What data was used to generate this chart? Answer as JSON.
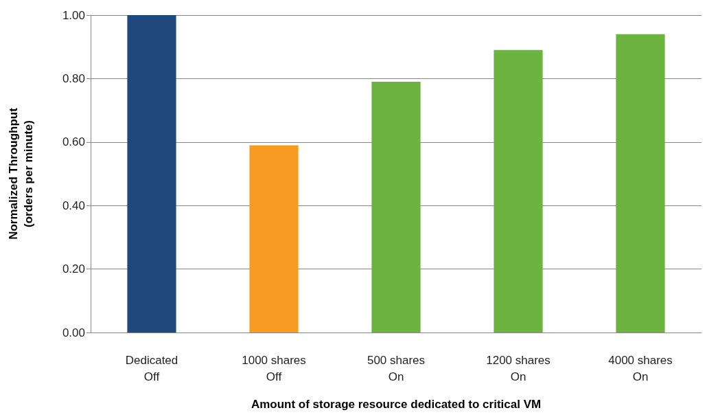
{
  "chart_data": {
    "type": "bar",
    "xlabel": "Amount of storage resource dedicated to critical VM",
    "ylabel": "Normalized Throughput\n(orders per minute)",
    "categories": [
      "Dedicated\nOff",
      "1000 shares\nOff",
      "500 shares\nOn",
      "1200 shares\nOn",
      "4000 shares\nOn"
    ],
    "values": [
      1.0,
      0.59,
      0.79,
      0.89,
      0.94
    ],
    "colors": [
      "#1f497d",
      "#f79b21",
      "#6db33f",
      "#6db33f",
      "#6db33f"
    ],
    "ylim": [
      0,
      1
    ],
    "yticks": [
      {
        "value": 0,
        "label": "0.00"
      },
      {
        "value": 0.2,
        "label": "0.20"
      },
      {
        "value": 0.4,
        "label": "0.40"
      },
      {
        "value": 0.6,
        "label": "0.60"
      },
      {
        "value": 0.8,
        "label": "0.80"
      },
      {
        "value": 1,
        "label": "1.00"
      }
    ],
    "grid": "y"
  }
}
